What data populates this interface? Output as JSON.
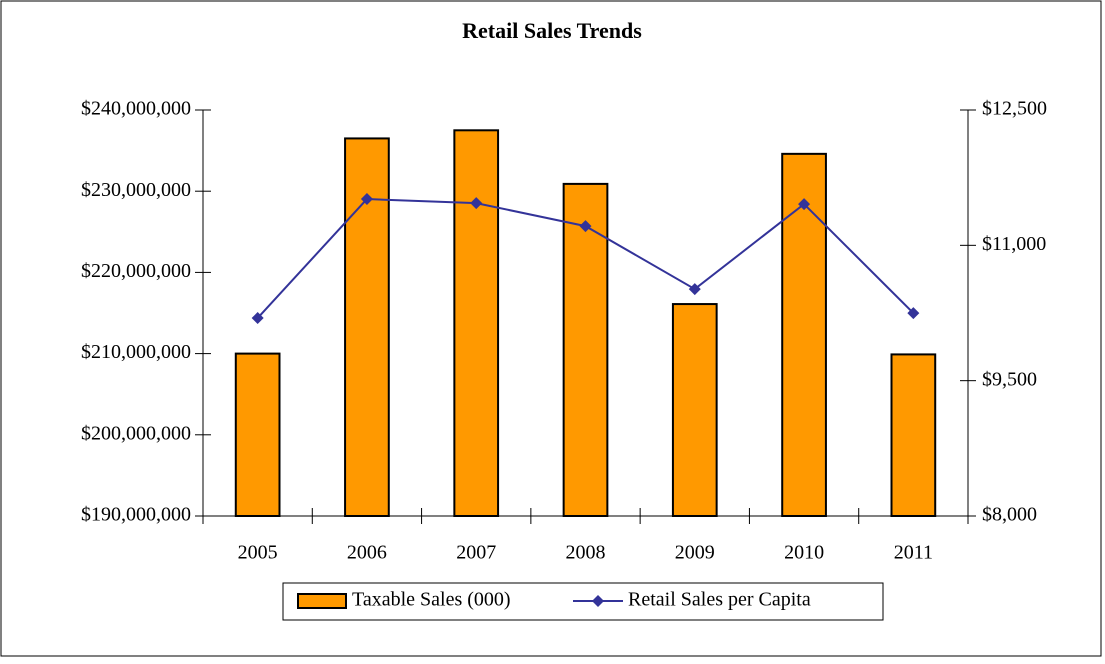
{
  "chart_data": {
    "type": "bar-line",
    "title": "Retail Sales Trends",
    "categories": [
      "2005",
      "2006",
      "2007",
      "2008",
      "2009",
      "2010",
      "2011"
    ],
    "series": [
      {
        "name": "Taxable Sales (000)",
        "color": "#ff9900",
        "type": "bar",
        "values": [
          210000000,
          236500000,
          237500000,
          230900000,
          216100000,
          234600000,
          209900000
        ]
      },
      {
        "name": "Retail Sales per Capita",
        "color": "#333399",
        "type": "line",
        "axis": "y2",
        "values": [
          10194,
          11513,
          11468,
          11213,
          10515,
          11457,
          10249
        ]
      }
    ],
    "ylim": [
      190000000,
      240000000
    ],
    "yticks": [
      {
        "value": 190000000,
        "label": "$190,000,000"
      },
      {
        "value": 200000000,
        "label": "$200,000,000"
      },
      {
        "value": 210000000,
        "label": "$210,000,000"
      },
      {
        "value": 220000000,
        "label": "$220,000,000"
      },
      {
        "value": 230000000,
        "label": "$230,000,000"
      },
      {
        "value": 240000000,
        "label": "$240,000,000"
      }
    ],
    "y2lim": [
      8000,
      12500
    ],
    "y2ticks": [
      {
        "value": 8000,
        "label": "$8,000"
      },
      {
        "value": 9500,
        "label": "$9,500"
      },
      {
        "value": 11000,
        "label": "$11,000"
      },
      {
        "value": 12500,
        "label": "$12,500"
      }
    ],
    "grid": false,
    "legend": "bottom"
  }
}
